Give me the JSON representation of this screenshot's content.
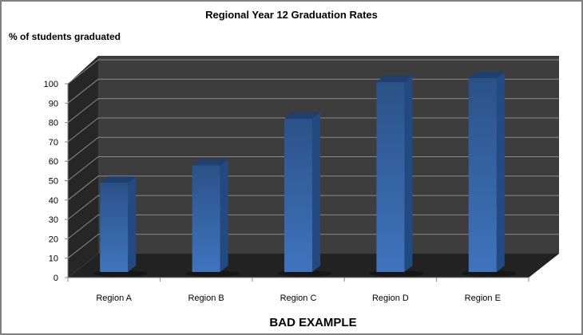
{
  "chart_data": {
    "type": "bar",
    "title": "Regional Year 12 Graduation Rates",
    "ylabel": "% of students graduated",
    "xlabel": "",
    "caption": "BAD EXAMPLE",
    "categories": [
      "Region A",
      "Region B",
      "Region C",
      "Region D",
      "Region E"
    ],
    "values": [
      46,
      55,
      79,
      98,
      100
    ],
    "ylim": [
      0,
      100
    ],
    "yticks": [
      "0",
      "10",
      "20",
      "30",
      "40",
      "50",
      "60",
      "70",
      "80",
      "90",
      "100"
    ],
    "grid": true,
    "style": "3d-column",
    "colors": {
      "bar": "#3f74bd",
      "bar_top": "#1f3f6e",
      "bar_side": "#234a80",
      "wall": "#3d3d3d",
      "floor": "#222222",
      "side_wall": "#262626",
      "grid": "#8a8a8a"
    }
  }
}
